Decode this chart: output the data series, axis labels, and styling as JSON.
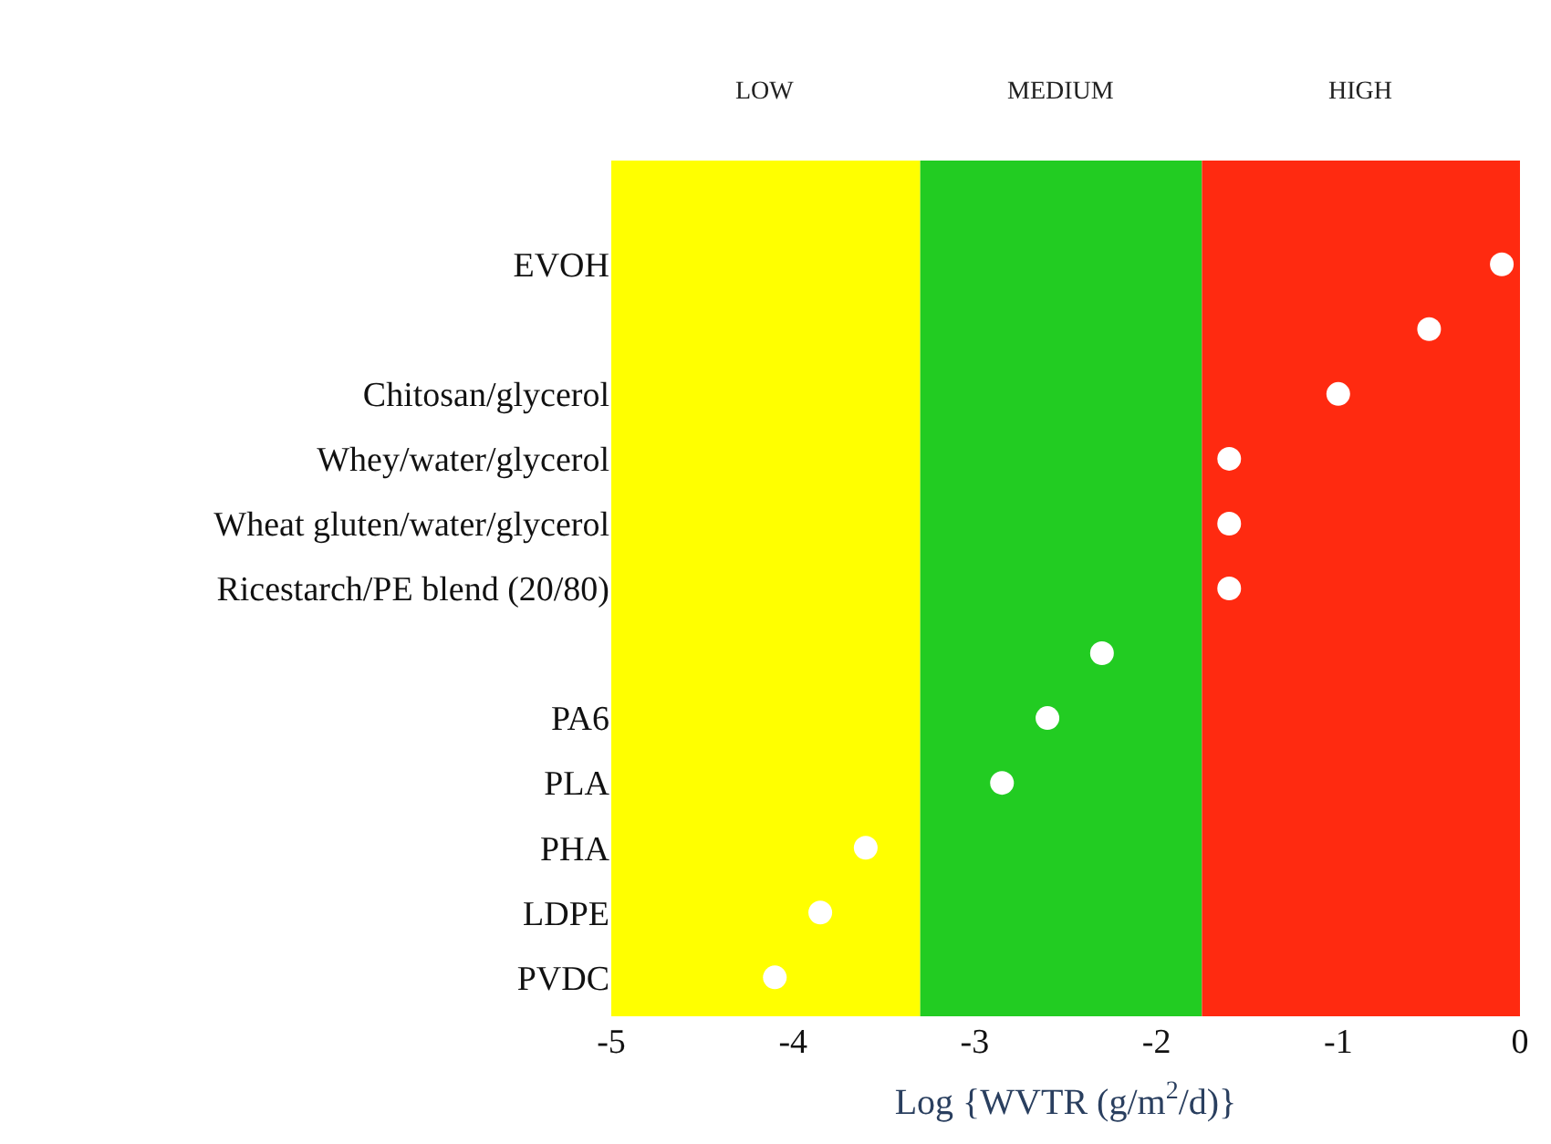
{
  "chart_data": {
    "type": "scatter",
    "orientation": "horizontal",
    "categories": [
      "EVOH",
      null,
      "Chitosan/glycerol",
      "Whey/water/glycerol",
      "Wheat gluten/water/glycerol",
      "Ricestarch/PE blend (20/80)",
      null,
      "PA6",
      "PLA",
      "PHA",
      "LDPE",
      "PVDC"
    ],
    "series": [
      {
        "color": "#ffffff",
        "values": [
          -0.1,
          -0.5,
          -1.0,
          -1.6,
          -1.6,
          -1.6,
          -2.3,
          -2.6,
          -2.85,
          -3.6,
          -3.85,
          -4.1
        ]
      }
    ],
    "xlabel": "Log {WVTR (g/m$^{2}$/d)}",
    "xlim": [
      -5,
      0
    ],
    "xticks": [
      -5,
      -4,
      -3,
      -2,
      -1,
      0
    ],
    "bands": [
      {
        "axis": "x",
        "from": -5,
        "to": -3.3,
        "label": "LOW",
        "color": "#ffff00"
      },
      {
        "axis": "x",
        "from": -3.3,
        "to": -1.75,
        "label": "MEDIUM",
        "color": "#22cc22"
      },
      {
        "axis": "x",
        "from": -1.75,
        "to": 0,
        "label": "HIGH",
        "color": "#ff2a10"
      }
    ],
    "marker": "circle",
    "grid": false
  }
}
